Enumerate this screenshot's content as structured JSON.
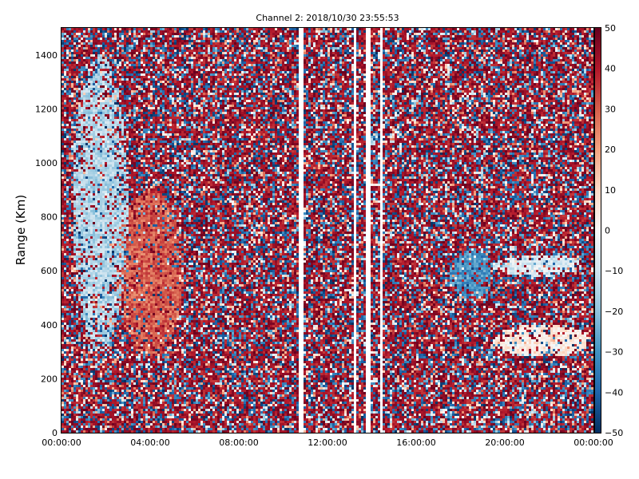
{
  "chart_data": {
    "type": "heatmap",
    "title": "Channel 2: 2018/10/30 23:55:53",
    "ylabel": "Range (Km)",
    "xlabel": "",
    "x_ticks": [
      "00:00:00",
      "04:00:00",
      "08:00:00",
      "12:00:00",
      "16:00:00",
      "20:00:00",
      "00:00:00"
    ],
    "y_ticks": [
      "0",
      "200",
      "400",
      "600",
      "800",
      "1000",
      "1200",
      "1400"
    ],
    "xlim": [
      "00:00:00",
      "24:00:00"
    ],
    "ylim": [
      0,
      1500
    ],
    "colorbar": {
      "ticks": [
        "50",
        "40",
        "30",
        "20",
        "10",
        "0",
        "−10",
        "−20",
        "−30",
        "−40",
        "−50"
      ],
      "range": [
        -50,
        50
      ],
      "colormap": "red-white-blue (RdBu)"
    },
    "grid": false,
    "data_gaps_hours": [
      [
        10.7,
        10.95
      ],
      [
        13.15,
        13.3
      ],
      [
        13.7,
        13.95
      ],
      [
        14.35,
        14.5
      ]
    ],
    "features": [
      {
        "description": "positive (red) plume",
        "time_hours": [
          2.5,
          5.5
        ],
        "range_km": [
          280,
          900
        ],
        "value_approx": 30
      },
      {
        "description": "negative (light blue) plume",
        "time_hours": [
          0.5,
          3.0
        ],
        "range_km": [
          300,
          1400
        ],
        "value_approx": -15
      },
      {
        "description": "blue arc",
        "time_hours": [
          17.5,
          19.5
        ],
        "range_km": [
          500,
          680
        ],
        "value_approx": -30
      },
      {
        "description": "light band",
        "time_hours": [
          19.5,
          23.5
        ],
        "range_km": [
          580,
          660
        ],
        "value_approx": -8
      },
      {
        "description": "mixed patch",
        "time_hours": [
          19.5,
          24.0
        ],
        "range_km": [
          280,
          400
        ],
        "value_approx": 5
      }
    ]
  },
  "colors": {
    "positive_max": "#67001f",
    "neutral": "#f7f7f7",
    "negative_max": "#053061",
    "axes": "#000000"
  }
}
